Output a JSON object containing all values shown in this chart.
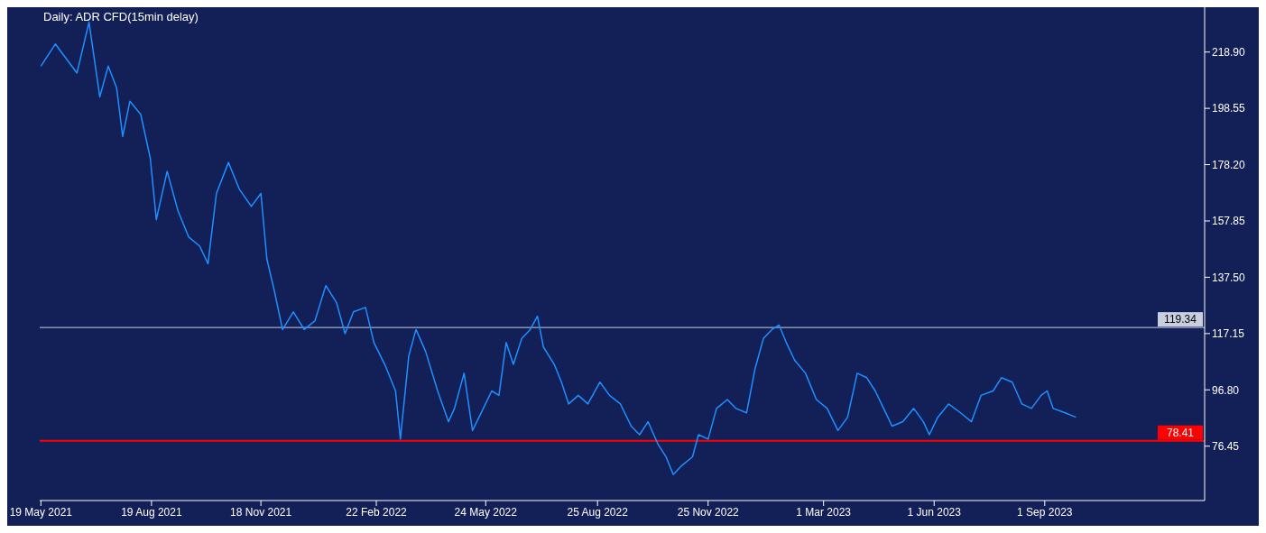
{
  "chart_data": {
    "type": "line",
    "title": "Daily: ADR CFD(15min delay)",
    "x": [
      "2021-05-19",
      "2021-05-31",
      "2021-06-11",
      "2021-06-18",
      "2021-06-28",
      "2021-07-07",
      "2021-07-14",
      "2021-07-21",
      "2021-07-26",
      "2021-08-01",
      "2021-08-10",
      "2021-08-18",
      "2021-08-23",
      "2021-09-01",
      "2021-09-10",
      "2021-09-19",
      "2021-09-28",
      "2021-10-05",
      "2021-10-12",
      "2021-10-22",
      "2021-10-31",
      "2021-11-10",
      "2021-11-18",
      "2021-11-23",
      "2021-11-29",
      "2021-12-06",
      "2021-12-15",
      "2021-12-24",
      "2022-01-02",
      "2022-01-11",
      "2022-01-20",
      "2022-01-27",
      "2022-02-03",
      "2022-02-13",
      "2022-02-20",
      "2022-03-01",
      "2022-03-10",
      "2022-03-14",
      "2022-03-21",
      "2022-03-27",
      "2022-04-04",
      "2022-04-14",
      "2022-04-23",
      "2022-04-28",
      "2022-05-06",
      "2022-05-13",
      "2022-05-22",
      "2022-05-29",
      "2022-06-04",
      "2022-06-10",
      "2022-06-16",
      "2022-06-23",
      "2022-06-30",
      "2022-07-06",
      "2022-07-11",
      "2022-07-20",
      "2022-07-26",
      "2022-08-01",
      "2022-08-09",
      "2022-08-17",
      "2022-08-27",
      "2022-09-04",
      "2022-09-13",
      "2022-09-22",
      "2022-09-29",
      "2022-10-06",
      "2022-10-14",
      "2022-10-21",
      "2022-10-27",
      "2022-11-03",
      "2022-11-12",
      "2022-11-17",
      "2022-11-25",
      "2022-12-02",
      "2022-12-11",
      "2022-12-18",
      "2022-12-27",
      "2023-01-03",
      "2023-01-10",
      "2023-01-17",
      "2023-01-23",
      "2023-01-29",
      "2023-02-05",
      "2023-02-14",
      "2023-02-23",
      "2023-03-04",
      "2023-03-13",
      "2023-03-21",
      "2023-03-29",
      "2023-04-06",
      "2023-04-13",
      "2023-04-20",
      "2023-04-27",
      "2023-05-06",
      "2023-05-15",
      "2023-05-23",
      "2023-05-28",
      "2023-06-04",
      "2023-06-13",
      "2023-06-23",
      "2023-07-02",
      "2023-07-10",
      "2023-07-20",
      "2023-07-27",
      "2023-08-05",
      "2023-08-13",
      "2023-08-21",
      "2023-08-29",
      "2023-09-03",
      "2023-09-08",
      "2023-09-18",
      "2023-09-27"
    ],
    "series": [
      {
        "color": "#1e90ff",
        "values": [
          213.8,
          221.8,
          215.4,
          211.3,
          229.7,
          202.7,
          213.8,
          205.9,
          188.4,
          201.1,
          196.4,
          180.5,
          158.3,
          175.8,
          161.5,
          152.0,
          148.8,
          142.4,
          167.8,
          179.0,
          169.4,
          163.1,
          167.8,
          144.0,
          132.9,
          118.6,
          125.0,
          118.6,
          121.8,
          134.5,
          128.2,
          117.1,
          125.0,
          126.6,
          113.9,
          106.0,
          96.4,
          79.0,
          109.1,
          118.6,
          110.7,
          96.4,
          85.3,
          90.1,
          102.8,
          82.1,
          90.1,
          96.4,
          94.8,
          113.9,
          106.0,
          115.4,
          118.6,
          123.4,
          112.3,
          106.0,
          99.6,
          91.7,
          94.8,
          91.7,
          99.6,
          94.8,
          91.7,
          83.7,
          80.6,
          85.3,
          77.4,
          72.6,
          66.2,
          69.4,
          72.6,
          80.6,
          79.0,
          90.1,
          93.3,
          90.1,
          88.5,
          104.4,
          115.4,
          118.6,
          120.2,
          113.9,
          107.5,
          102.8,
          93.3,
          90.1,
          82.1,
          86.9,
          102.8,
          101.2,
          96.4,
          90.1,
          83.7,
          85.3,
          90.1,
          85.3,
          80.6,
          86.9,
          91.7,
          88.5,
          85.3,
          94.8,
          96.4,
          101.2,
          99.6,
          91.7,
          90.1,
          94.8,
          96.4,
          90.1,
          88.5,
          86.9
        ]
      }
    ],
    "xlim": [
      "2021-05-18",
      "2024-01-12"
    ],
    "xticks": [
      {
        "value": "2021-05-19",
        "label": "19 May 2021"
      },
      {
        "value": "2021-08-19",
        "label": "19 Aug 2021"
      },
      {
        "value": "2021-11-18",
        "label": "18 Nov 2021"
      },
      {
        "value": "2022-02-22",
        "label": "22 Feb 2022"
      },
      {
        "value": "2022-05-24",
        "label": "24 May 2022"
      },
      {
        "value": "2022-08-25",
        "label": "25 Aug 2022"
      },
      {
        "value": "2022-11-25",
        "label": "25 Nov 2022"
      },
      {
        "value": "2023-03-01",
        "label": "1 Mar 2023"
      },
      {
        "value": "2023-06-01",
        "label": "1 Jun 2023"
      },
      {
        "value": "2023-09-01",
        "label": "1 Sep 2023"
      }
    ],
    "ylim": [
      56.8,
      235.1
    ],
    "yticks": [
      {
        "value": 76.45,
        "label": "76.45"
      },
      {
        "value": 96.8,
        "label": "96.80"
      },
      {
        "value": 117.15,
        "label": "117.15"
      },
      {
        "value": 137.5,
        "label": "137.50"
      },
      {
        "value": 157.85,
        "label": "157.85"
      },
      {
        "value": 178.2,
        "label": "178.20"
      },
      {
        "value": 198.55,
        "label": "198.55"
      },
      {
        "value": 218.9,
        "label": "218.90"
      }
    ],
    "ref_lines": [
      {
        "axis": "y",
        "value": 119.34,
        "label": "119.34",
        "color": "#c8d0e0"
      },
      {
        "axis": "y",
        "value": 78.41,
        "label": "78.41",
        "color": "#ff0000"
      }
    ],
    "grid": false,
    "legend": false,
    "marker": "none",
    "line_style": "solid"
  }
}
